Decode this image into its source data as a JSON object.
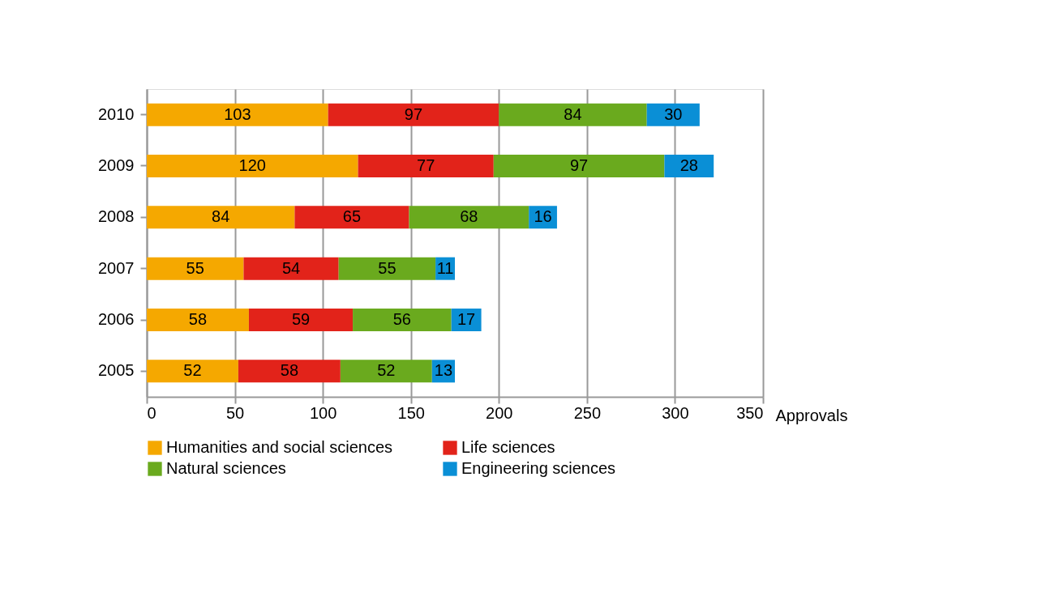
{
  "chart_data": {
    "type": "bar",
    "orientation": "horizontal",
    "stacked": true,
    "xlabel": "Approvals",
    "categories": [
      "2010",
      "2009",
      "2008",
      "2007",
      "2006",
      "2005"
    ],
    "series": [
      {
        "name": "Humanities and social sciences",
        "color": "#f5a800",
        "values": [
          103,
          120,
          84,
          55,
          58,
          52
        ]
      },
      {
        "name": "Life sciences",
        "color": "#e2231a",
        "values": [
          97,
          77,
          65,
          54,
          59,
          58
        ]
      },
      {
        "name": "Natural sciences",
        "color": "#6aaa1e",
        "values": [
          84,
          97,
          68,
          55,
          56,
          52
        ]
      },
      {
        "name": "Engineering sciences",
        "color": "#0a8fd6",
        "values": [
          30,
          28,
          16,
          11,
          17,
          13
        ]
      }
    ],
    "xlim": [
      0,
      350
    ],
    "xticks": [
      0,
      50,
      100,
      150,
      200,
      250,
      300,
      350
    ],
    "grid": "x",
    "legend": "bottom",
    "data_labels": true
  }
}
